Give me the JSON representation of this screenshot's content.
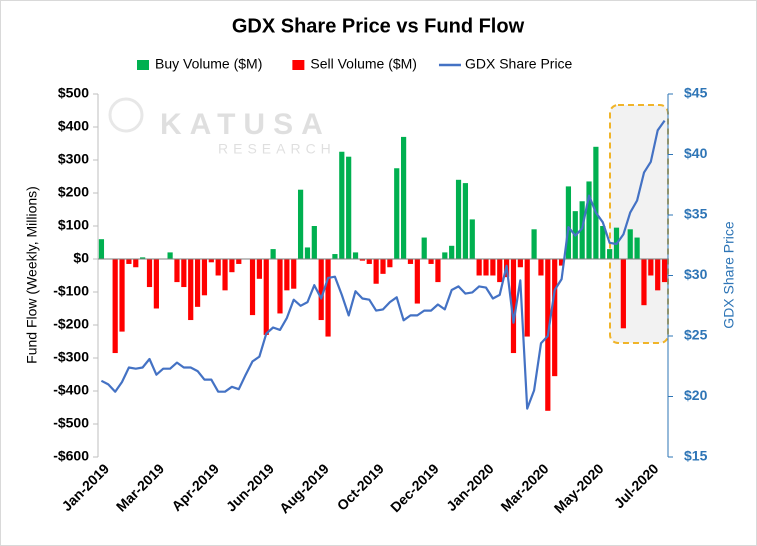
{
  "chart_data": {
    "type": "bar_line",
    "title": "GDX Share Price vs Fund Flow",
    "watermark": "KATUSA",
    "watermark_sub": "RESEARCH",
    "ylabel": "Fund Flow (Weekly, Millions)",
    "y2label": "GDX Share Price",
    "categories": [
      "Jan-2019",
      null,
      null,
      null,
      null,
      null,
      null,
      null,
      "Mar-2019",
      null,
      null,
      null,
      null,
      null,
      null,
      null,
      "Apr-2019",
      null,
      null,
      null,
      null,
      null,
      null,
      null,
      "Jun-2019",
      null,
      null,
      null,
      null,
      null,
      null,
      null,
      "Aug-2019",
      null,
      null,
      null,
      null,
      null,
      null,
      null,
      "Oct-2019",
      null,
      null,
      null,
      null,
      null,
      null,
      null,
      "Dec-2019",
      null,
      null,
      null,
      null,
      null,
      null,
      null,
      "Jan-2020",
      null,
      null,
      null,
      null,
      null,
      null,
      null,
      "Mar-2020",
      null,
      null,
      null,
      null,
      null,
      null,
      null,
      "May-2020",
      null,
      null,
      null,
      null,
      null,
      null,
      null,
      "Jul-2020",
      null,
      null
    ],
    "series": [
      {
        "name": "Buy Volume ($M)",
        "kind": "bar",
        "color": "#00b050",
        "values": [
          60,
          null,
          null,
          null,
          null,
          null,
          5,
          null,
          null,
          null,
          20,
          null,
          null,
          null,
          null,
          null,
          null,
          null,
          null,
          null,
          null,
          null,
          null,
          null,
          null,
          30,
          null,
          null,
          null,
          210,
          35,
          100,
          null,
          null,
          15,
          325,
          310,
          20,
          null,
          null,
          null,
          null,
          null,
          275,
          370,
          null,
          null,
          65,
          null,
          null,
          20,
          40,
          240,
          230,
          120,
          null,
          null,
          null,
          null,
          null,
          null,
          null,
          null,
          90,
          null,
          null,
          null,
          null,
          220,
          145,
          175,
          235,
          340,
          100,
          30,
          95,
          null,
          90,
          65,
          null,
          null,
          null,
          null
        ]
      },
      {
        "name": "Sell Volume ($M)",
        "kind": "bar",
        "color": "#ff0000",
        "values": [
          null,
          null,
          -285,
          -220,
          -15,
          -25,
          null,
          -85,
          -150,
          null,
          null,
          -70,
          -85,
          -185,
          -145,
          -110,
          -10,
          -50,
          -95,
          -40,
          -15,
          null,
          -170,
          -60,
          -230,
          null,
          -165,
          -95,
          -90,
          null,
          null,
          null,
          -185,
          -235,
          null,
          null,
          null,
          null,
          -5,
          -15,
          -75,
          -45,
          -25,
          null,
          null,
          -15,
          -135,
          null,
          -15,
          -70,
          null,
          null,
          null,
          null,
          null,
          -50,
          -50,
          -50,
          -70,
          -55,
          -285,
          -25,
          -235,
          null,
          -50,
          -460,
          -355,
          -20,
          null,
          null,
          null,
          null,
          null,
          null,
          null,
          null,
          -210,
          null,
          null,
          -140,
          -50,
          -95,
          -70
        ]
      },
      {
        "name": "GDX Share Price",
        "kind": "line",
        "axis": "y2",
        "color": "#4472c4",
        "values": [
          21.3,
          21.0,
          20.4,
          21.2,
          22.4,
          22.3,
          22.4,
          23.1,
          21.8,
          22.3,
          22.3,
          22.8,
          22.4,
          22.4,
          22.1,
          21.4,
          21.4,
          20.4,
          20.4,
          20.8,
          20.6,
          21.8,
          22.9,
          23.3,
          25.2,
          25.7,
          25.5,
          26.5,
          28.0,
          27.5,
          27.8,
          29.2,
          28.1,
          29.8,
          29.9,
          28.4,
          26.7,
          28.7,
          28.1,
          28.0,
          27.1,
          27.2,
          27.8,
          28.2,
          26.3,
          26.7,
          26.7,
          27.1,
          27.1,
          27.6,
          27.2,
          28.8,
          29.1,
          28.5,
          28.6,
          29.1,
          29.0,
          28.1,
          28.4,
          30.8,
          26.1,
          29.6,
          19.0,
          20.5,
          24.4,
          25.0,
          28.8,
          29.7,
          34.0,
          33.3,
          33.9,
          36.6,
          35.2,
          34.4,
          32.7,
          32.6,
          33.4,
          35.2,
          36.2,
          38.5,
          39.4,
          42.0,
          42.8
        ]
      }
    ],
    "ylim": [
      -600,
      500
    ],
    "yticks": [
      {
        "value": 500,
        "label": "$500"
      },
      {
        "value": 400,
        "label": "$400"
      },
      {
        "value": 300,
        "label": "$300"
      },
      {
        "value": 200,
        "label": "$200"
      },
      {
        "value": 100,
        "label": "$100"
      },
      {
        "value": 0,
        "label": "$0"
      },
      {
        "value": -100,
        "label": "-$100"
      },
      {
        "value": -200,
        "label": "-$200"
      },
      {
        "value": -300,
        "label": "-$300"
      },
      {
        "value": -400,
        "label": "-$400"
      },
      {
        "value": -500,
        "label": "-$500"
      },
      {
        "value": -600,
        "label": "-$600"
      }
    ],
    "y2lim": [
      15,
      45
    ],
    "y2ticks": [
      {
        "value": 45,
        "label": "$45"
      },
      {
        "value": 40,
        "label": "$40"
      },
      {
        "value": 35,
        "label": "$35"
      },
      {
        "value": 30,
        "label": "$30"
      },
      {
        "value": 25,
        "label": "$25"
      },
      {
        "value": 20,
        "label": "$20"
      },
      {
        "value": 15,
        "label": "$15"
      }
    ],
    "y2color": "#2e75b6",
    "grid": false,
    "legend": "top"
  }
}
